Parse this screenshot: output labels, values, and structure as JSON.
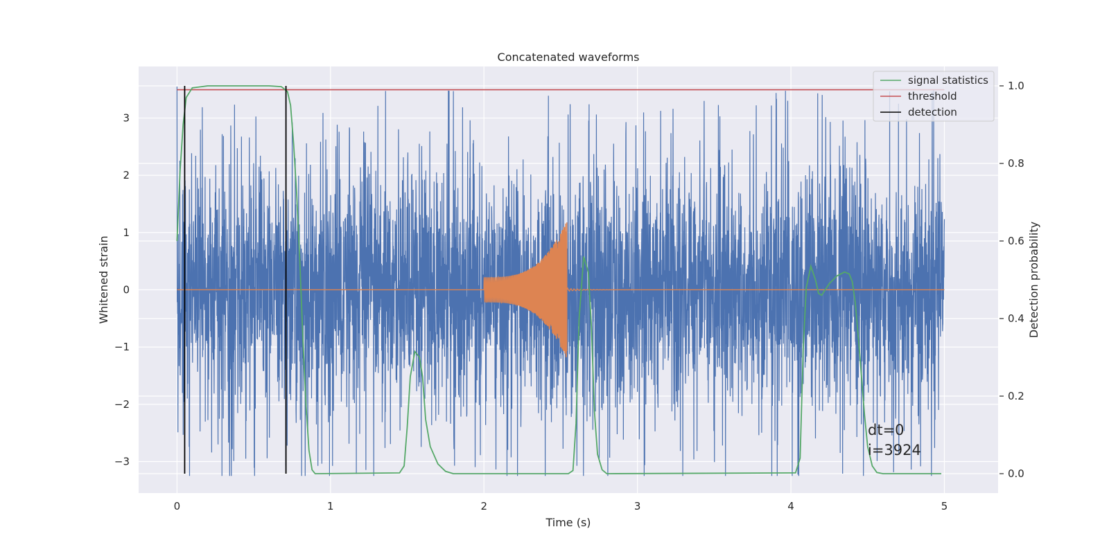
{
  "chart_data": {
    "type": "line",
    "title": "Concatenated waveforms",
    "xlabel": "Time (s)",
    "ylabel": "Whitened strain",
    "y2label": "Detection probability",
    "xlim": [
      -0.25,
      5.35
    ],
    "ylim": [
      -3.55,
      3.9
    ],
    "y2lim": [
      -0.05,
      1.05
    ],
    "x_ticks": [
      0,
      1,
      2,
      3,
      4,
      5
    ],
    "x_tick_labels": [
      "0",
      "1",
      "2",
      "3",
      "4",
      "5"
    ],
    "y_ticks": [
      -3,
      -2,
      -1,
      0,
      1,
      2,
      3
    ],
    "y_tick_labels": [
      "−3",
      "−2",
      "−1",
      "0",
      "1",
      "2",
      "3"
    ],
    "y2_ticks": [
      0.0,
      0.2,
      0.4,
      0.6,
      0.8,
      1.0
    ],
    "y2_tick_labels": [
      "0.0",
      "0.2",
      "0.4",
      "0.6",
      "0.8",
      "1.0"
    ],
    "grid": true,
    "legend_position": "top-right",
    "colors": {
      "background": "#eaeaf2",
      "grid": "#ffffff",
      "strain": "#4c72b0",
      "template": "#dd8452",
      "signal_statistics": "#55a868",
      "threshold": "#c44e52",
      "detection": "#000000"
    },
    "series": [
      {
        "id": "strain",
        "kind": "noise",
        "axis": "left",
        "x_range": [
          0,
          5
        ],
        "samples": 4096,
        "envelope_max": 3.55,
        "envelope_min": -3.25,
        "core_band": [
          -1.1,
          1.1
        ],
        "seed": 7
      },
      {
        "id": "template",
        "kind": "chirp",
        "axis": "left",
        "x_range": [
          0,
          5
        ],
        "chirp_start": 2.0,
        "chirp_end": 2.54,
        "ringdown_end": 3.0,
        "start_amplitude": 0.22,
        "peak_amplitude": 1.22,
        "peak_trough": -1.07
      },
      {
        "id": "signal_statistics",
        "name": "signal statistics",
        "axis": "right",
        "points": [
          [
            0.0,
            0.6
          ],
          [
            0.02,
            0.78
          ],
          [
            0.04,
            0.9
          ],
          [
            0.06,
            0.97
          ],
          [
            0.1,
            0.995
          ],
          [
            0.2,
            1.0
          ],
          [
            0.6,
            1.0
          ],
          [
            0.68,
            0.998
          ],
          [
            0.72,
            0.985
          ],
          [
            0.74,
            0.95
          ],
          [
            0.76,
            0.85
          ],
          [
            0.78,
            0.72
          ],
          [
            0.8,
            0.55
          ],
          [
            0.82,
            0.35
          ],
          [
            0.84,
            0.18
          ],
          [
            0.86,
            0.06
          ],
          [
            0.88,
            0.01
          ],
          [
            0.9,
            0.0
          ],
          [
            1.45,
            0.002
          ],
          [
            1.48,
            0.02
          ],
          [
            1.5,
            0.12
          ],
          [
            1.52,
            0.25
          ],
          [
            1.55,
            0.315
          ],
          [
            1.58,
            0.3
          ],
          [
            1.6,
            0.25
          ],
          [
            1.62,
            0.14
          ],
          [
            1.65,
            0.07
          ],
          [
            1.7,
            0.025
          ],
          [
            1.75,
            0.006
          ],
          [
            1.8,
            0.0
          ],
          [
            2.55,
            0.0
          ],
          [
            2.58,
            0.008
          ],
          [
            2.6,
            0.13
          ],
          [
            2.62,
            0.4
          ],
          [
            2.65,
            0.56
          ],
          [
            2.68,
            0.52
          ],
          [
            2.7,
            0.38
          ],
          [
            2.72,
            0.16
          ],
          [
            2.74,
            0.05
          ],
          [
            2.77,
            0.01
          ],
          [
            2.8,
            0.0
          ],
          [
            4.03,
            0.002
          ],
          [
            4.06,
            0.04
          ],
          [
            4.08,
            0.32
          ],
          [
            4.1,
            0.48
          ],
          [
            4.13,
            0.535
          ],
          [
            4.16,
            0.5
          ],
          [
            4.18,
            0.465
          ],
          [
            4.2,
            0.46
          ],
          [
            4.25,
            0.49
          ],
          [
            4.3,
            0.51
          ],
          [
            4.35,
            0.52
          ],
          [
            4.38,
            0.515
          ],
          [
            4.4,
            0.495
          ],
          [
            4.42,
            0.44
          ],
          [
            4.45,
            0.3
          ],
          [
            4.48,
            0.15
          ],
          [
            4.5,
            0.07
          ],
          [
            4.53,
            0.02
          ],
          [
            4.56,
            0.003
          ],
          [
            4.6,
            0.0
          ],
          [
            4.98,
            0.0
          ]
        ]
      },
      {
        "id": "threshold",
        "name": "threshold",
        "axis": "right",
        "x": [
          0.0,
          5.0
        ],
        "value": 0.99
      },
      {
        "id": "detection",
        "name": "detection",
        "axis": "right",
        "x": [
          0.05,
          0.71
        ],
        "y_range": [
          0.0,
          1.0
        ]
      }
    ],
    "annotations": [
      "dt=0",
      "i=3924"
    ]
  }
}
